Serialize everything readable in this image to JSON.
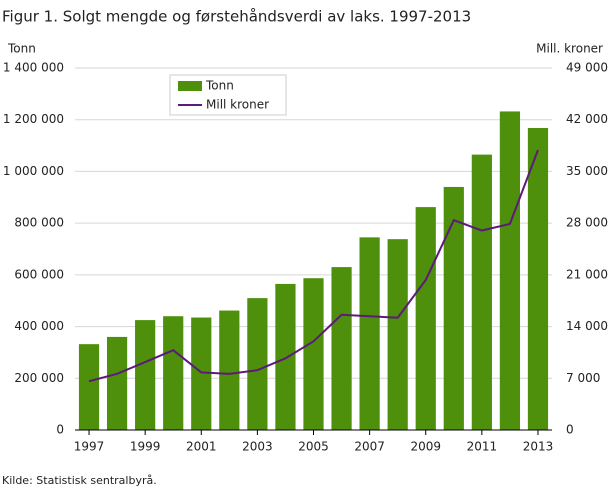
{
  "chart_data": {
    "type": "bar",
    "title": "Figur 1. Solgt mengde og førstehåndsverdi av laks. 1997-2013",
    "y_label": "Tonn",
    "y2_label": "Mill. kroner",
    "source": "Kilde: Statistisk sentralbyrå.",
    "x": [
      1997,
      1998,
      1999,
      2000,
      2001,
      2002,
      2003,
      2004,
      2005,
      2006,
      2007,
      2008,
      2009,
      2010,
      2011,
      2012,
      2013
    ],
    "xlim": [
      1996.5,
      2013.5
    ],
    "xticks": [
      1997,
      1999,
      2001,
      2003,
      2005,
      2007,
      2009,
      2011,
      2013
    ],
    "ylim": [
      0,
      1400000
    ],
    "yticks": [
      0,
      {
        "value": 200000,
        "label": "200 000"
      },
      {
        "value": 400000,
        "label": "400 000"
      },
      {
        "value": 600000,
        "label": "600 000"
      },
      {
        "value": 800000,
        "label": "800 000"
      },
      {
        "value": 1000000,
        "label": "1 000 000"
      },
      {
        "value": 1200000,
        "label": "1 200 000"
      },
      {
        "value": 1400000,
        "label": "1 400 000"
      }
    ],
    "y2lim": [
      0,
      49000
    ],
    "y2ticks": [
      0,
      {
        "value": 7000,
        "label": "7 000"
      },
      {
        "value": 14000,
        "label": "14 000"
      },
      {
        "value": 21000,
        "label": "21 000"
      },
      {
        "value": 28000,
        "label": "28 000"
      },
      {
        "value": 35000,
        "label": "35 000"
      },
      {
        "value": 42000,
        "label": "42 000"
      },
      {
        "value": 49000,
        "label": "49 000"
      }
    ],
    "grid": true,
    "legend": "top-left",
    "series": [
      {
        "name": "Tonn",
        "type": "bar",
        "color": "#4e8f0b",
        "values": [
          332000,
          360000,
          425000,
          440000,
          435000,
          462000,
          510000,
          565000,
          587000,
          630000,
          745000,
          738000,
          862000,
          940000,
          1065000,
          1232000,
          1168000
        ]
      },
      {
        "name": "Mill kroner",
        "type": "line",
        "axis": "y2",
        "color": "#5c1a7a",
        "values": [
          6600,
          7600,
          9200,
          10800,
          7800,
          7600,
          8100,
          9700,
          12000,
          15600,
          15400,
          15200,
          20300,
          28400,
          27000,
          27900,
          37900
        ]
      }
    ]
  }
}
